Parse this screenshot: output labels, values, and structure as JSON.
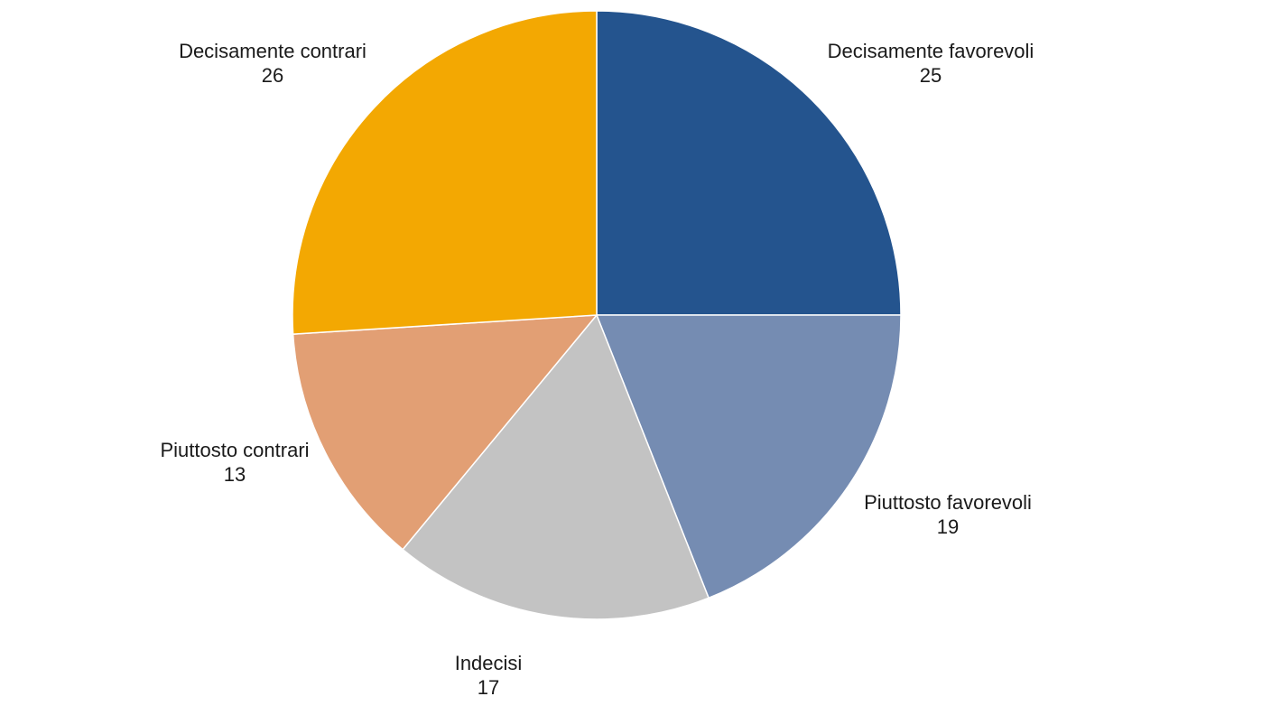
{
  "chart_data": {
    "type": "pie",
    "title": "",
    "slices": [
      {
        "label": "Decisamente favorevoli",
        "value": 25,
        "color": "#24548E"
      },
      {
        "label": "Piuttosto favorevoli",
        "value": 19,
        "color": "#758CB2"
      },
      {
        "label": "Indecisi",
        "value": 17,
        "color": "#C3C3C3"
      },
      {
        "label": "Piuttosto contrari",
        "value": 13,
        "color": "#E29F74"
      },
      {
        "label": "Decisamente contrari",
        "value": 26,
        "color": "#F3A802"
      }
    ],
    "start_angle_deg": 0,
    "direction": "clockwise",
    "data_labels": "outside, category name above value",
    "legend": "none"
  }
}
